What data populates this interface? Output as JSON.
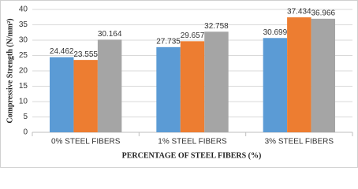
{
  "chart_data": {
    "type": "bar",
    "y_label": "Compressive Strength (N/mm²)",
    "x_label": "PERCENTAGE OF STEEL FIBERS (%)",
    "categories": [
      "0% STEEL FIBERS",
      "1% STEEL FIBERS",
      "3% STEEL FIBERS"
    ],
    "series": [
      {
        "color": "#5b9bd5",
        "values": [
          24.462,
          27.735,
          30.699
        ]
      },
      {
        "color": "#ed7d31",
        "values": [
          23.555,
          29.657,
          37.434
        ]
      },
      {
        "color": "#a5a5a5",
        "values": [
          30.164,
          32.758,
          36.966
        ]
      }
    ],
    "ylim": [
      0,
      40
    ],
    "yticks": [
      0,
      5,
      10,
      15,
      20,
      25,
      30,
      35,
      40
    ],
    "grid": true
  }
}
